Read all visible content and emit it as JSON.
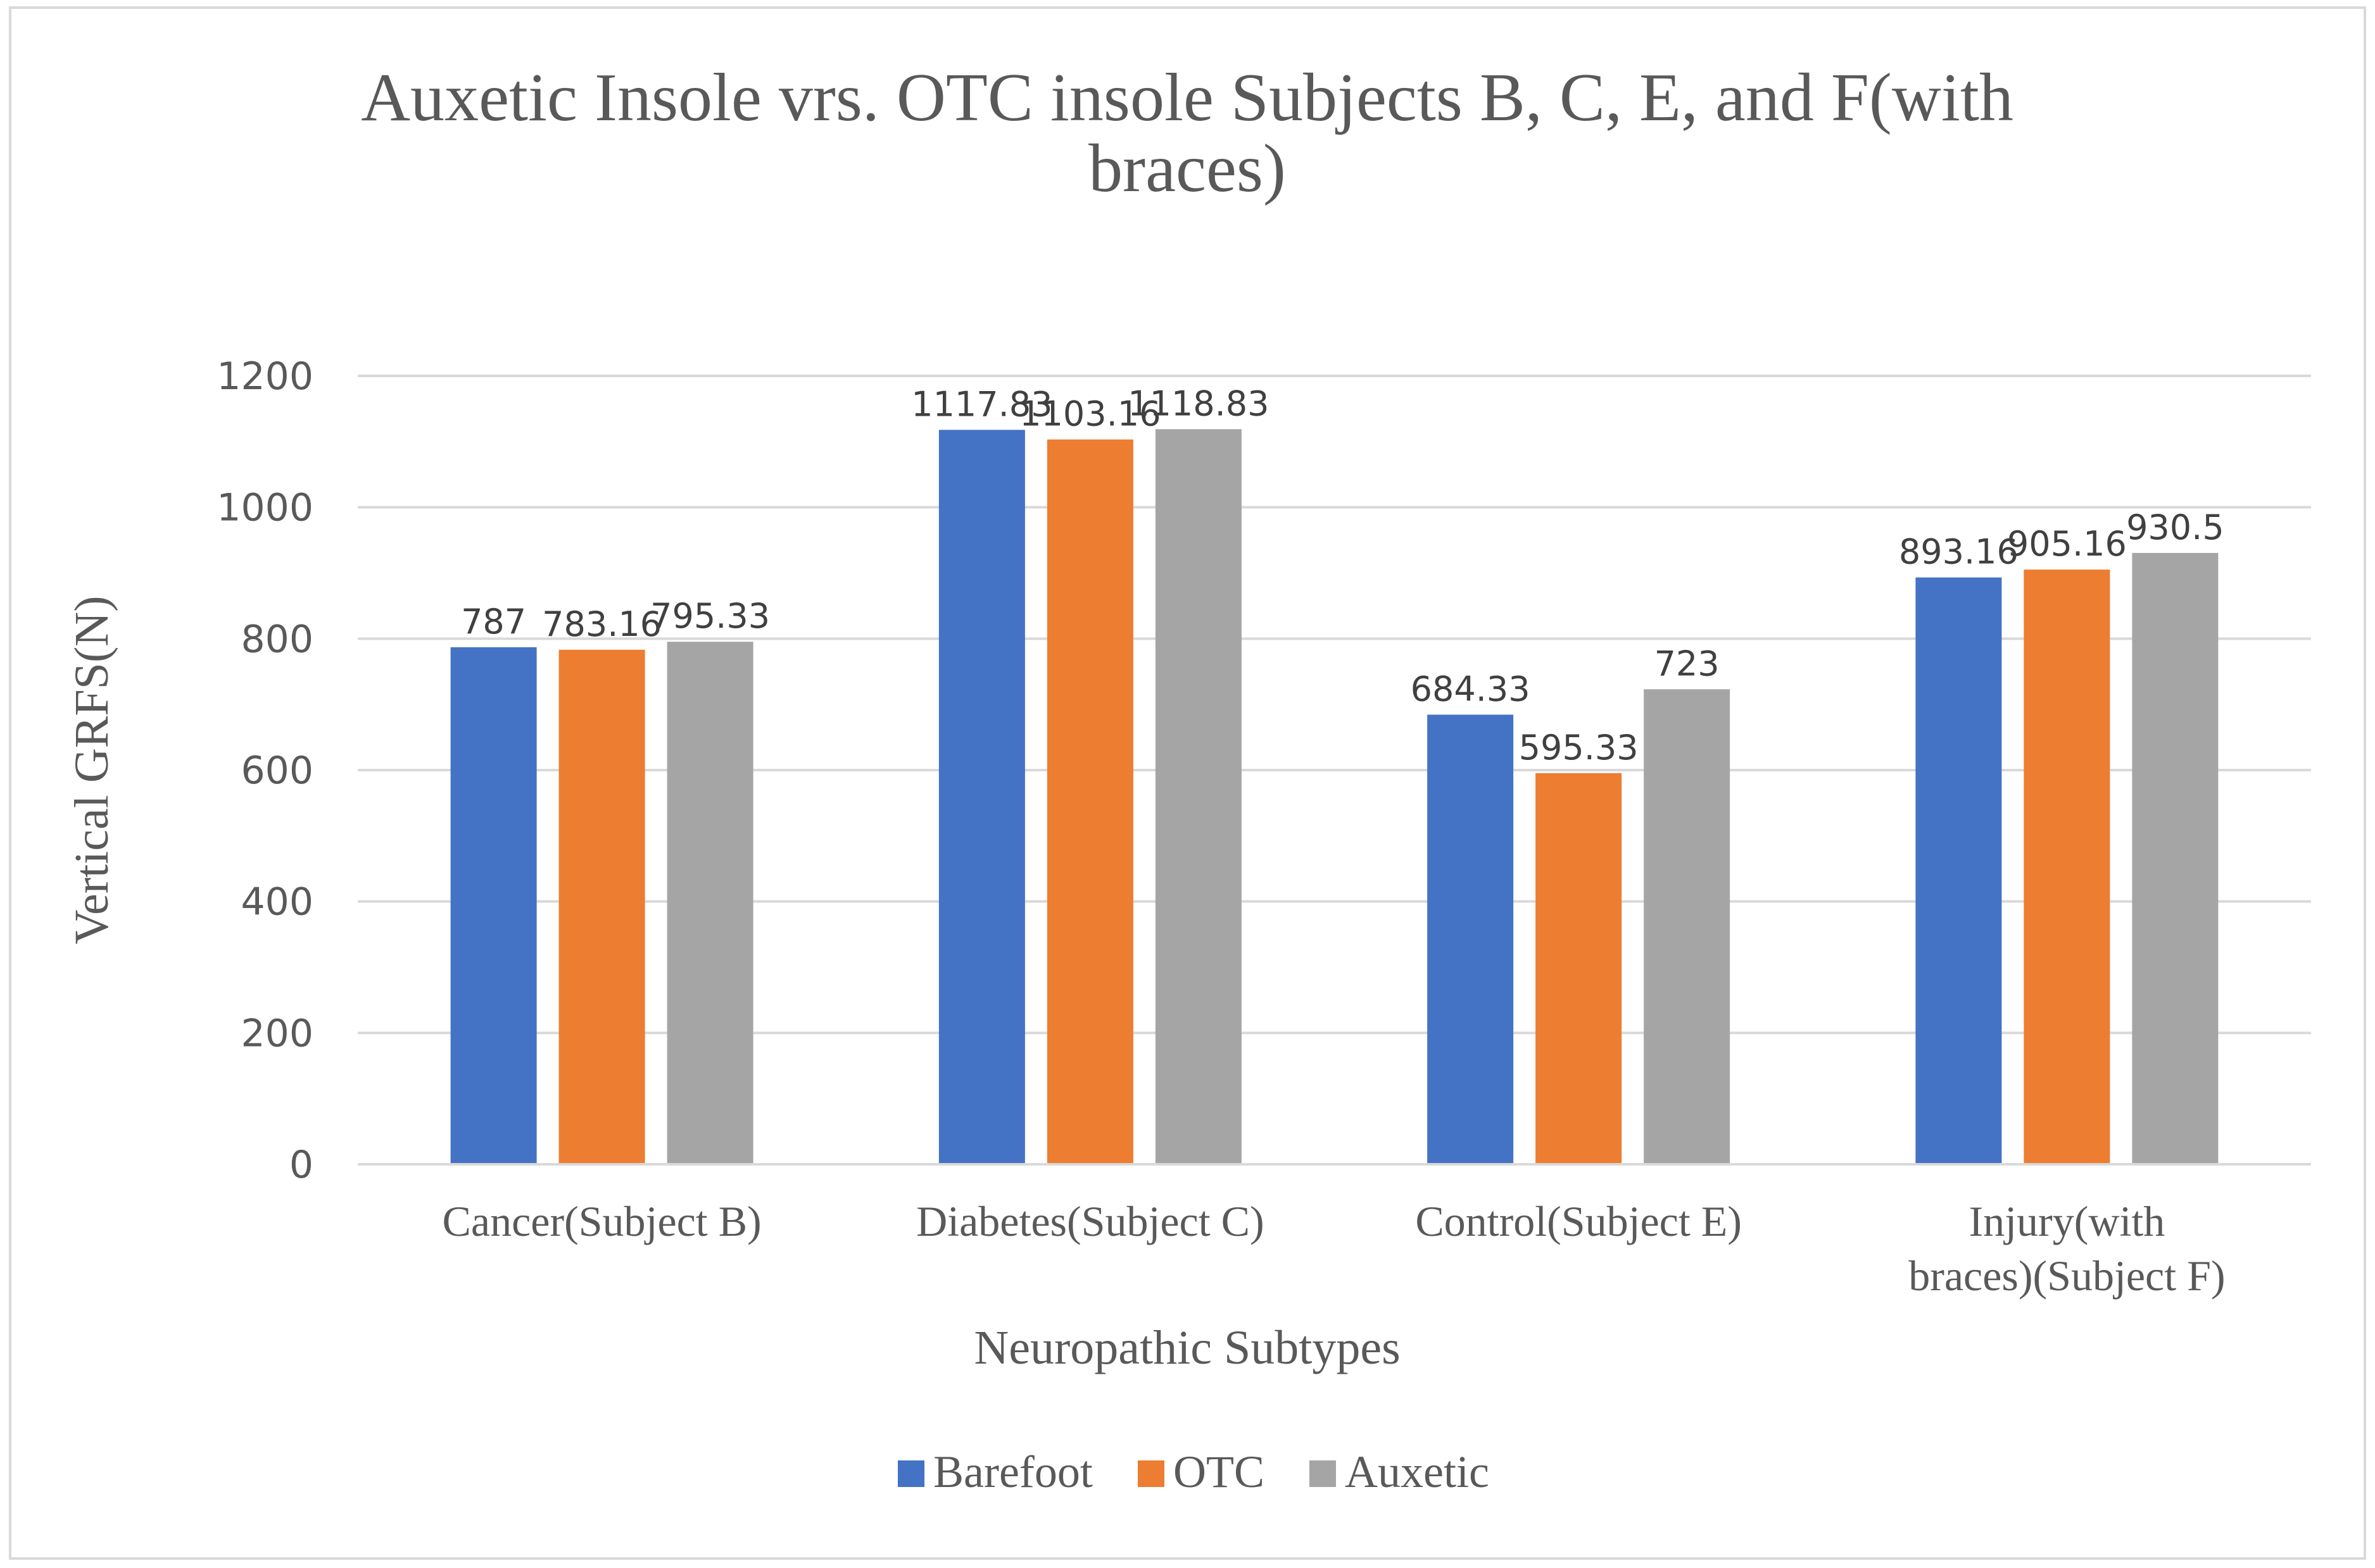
{
  "chart_data": {
    "type": "bar",
    "title": [
      "Auxetic Insole vrs. OTC insole Subjects B, C, E, and F(with",
      "braces)"
    ],
    "xlabel": "Neuropathic Subtypes",
    "ylabel": "Vertical GRFS(N)",
    "ylim": [
      0,
      1200
    ],
    "yticks": [
      0,
      200,
      400,
      600,
      800,
      1000,
      1200
    ],
    "grid": true,
    "legend_position": "bottom",
    "categories": [
      [
        "Cancer(Subject B)"
      ],
      [
        "Diabetes(Subject C)"
      ],
      [
        "Control(Subject E)"
      ],
      [
        "Injury(with",
        "braces)(Subject F)"
      ]
    ],
    "series": [
      {
        "name": "Barefoot",
        "color": "#4472C4",
        "values": [
          787,
          1117.83,
          684.33,
          893.16
        ],
        "labels": [
          "787",
          "1117.83",
          "684.33",
          "893.16"
        ]
      },
      {
        "name": "OTC",
        "color": "#ED7D31",
        "values": [
          783.16,
          1103.16,
          595.33,
          905.16
        ],
        "labels": [
          "783.16",
          "1103.16",
          "595.33",
          "905.16"
        ]
      },
      {
        "name": "Auxetic",
        "color": "#A5A5A5",
        "values": [
          795.33,
          1118.83,
          723,
          930.5
        ],
        "labels": [
          "795.33",
          "1118.83",
          "723",
          "930.5"
        ]
      }
    ],
    "gridline_color": "#d9d9d9"
  }
}
